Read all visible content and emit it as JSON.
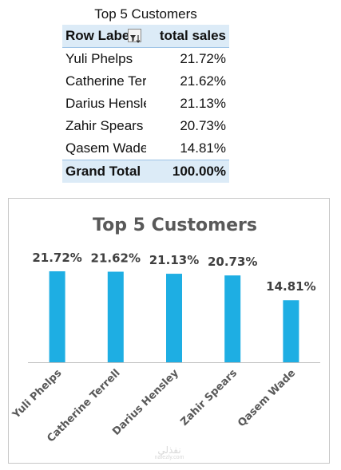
{
  "pivot": {
    "title": "Top 5 Customers",
    "header_row_label": "Row Labels",
    "header_value": "total sales",
    "rows": [
      {
        "label": "Yuli Phelps",
        "value": "21.72%"
      },
      {
        "label": "Catherine Terrell",
        "value": "21.62%"
      },
      {
        "label": "Darius Hensley",
        "value": "21.13%"
      },
      {
        "label": "Zahir Spears",
        "value": "20.73%"
      },
      {
        "label": "Qasem Wade",
        "value": "14.81%"
      }
    ],
    "total_label": "Grand Total",
    "total_value": "100.00%",
    "filter_icon": "filter-sort-icon"
  },
  "chart_data": {
    "type": "bar",
    "title": "Top 5 Customers",
    "categories": [
      "Yuli Phelps",
      "Catherine Terrell",
      "Darius Hensley",
      "Zahir Spears",
      "Qasem Wade"
    ],
    "values": [
      21.72,
      21.62,
      21.13,
      20.73,
      14.81
    ],
    "data_labels": [
      "21.72%",
      "21.62%",
      "21.13%",
      "20.73%",
      "14.81%"
    ],
    "xlabel": "",
    "ylabel": "",
    "ylim": [
      0,
      24
    ],
    "grid": false,
    "legend": "none",
    "bar_color": "#1eaee3",
    "title_color": "#595959",
    "label_color": "#404040"
  },
  "watermark": {
    "text": "نفذلي",
    "sub": "nafezly.com"
  }
}
